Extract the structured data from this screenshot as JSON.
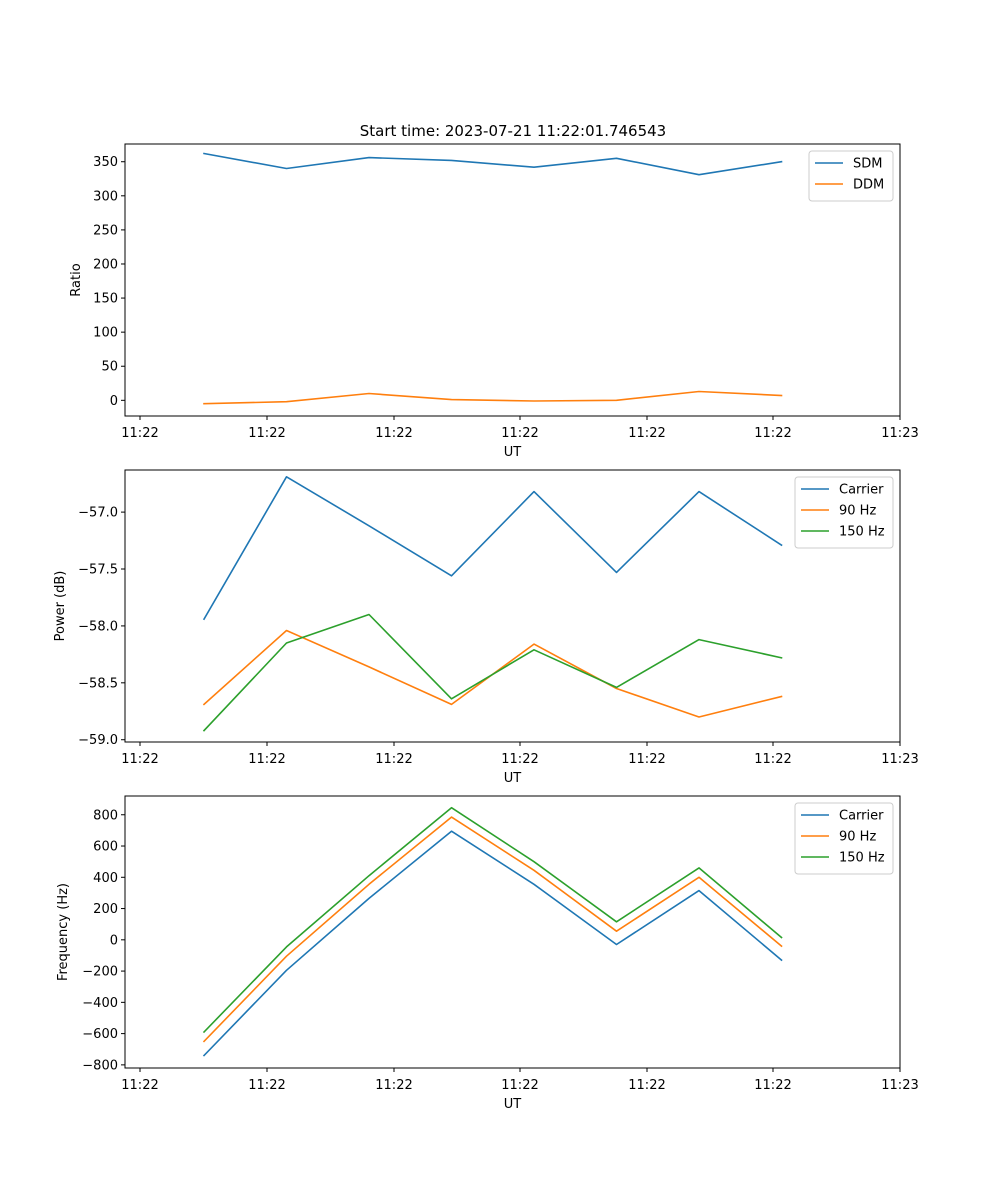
{
  "title": "Start time: 2023-07-21 11:22:01.746543",
  "colors": {
    "blue": "#1f77b4",
    "orange": "#ff7f0e",
    "green": "#2ca02c"
  },
  "chart_data": [
    {
      "type": "line",
      "xlabel": "UT",
      "ylabel": "Ratio",
      "x_tick_labels": [
        "11:22",
        "11:22",
        "11:22",
        "11:22",
        "11:22",
        "11:22",
        "11:23"
      ],
      "y_ticks": [
        0,
        50,
        100,
        150,
        200,
        250,
        300,
        350
      ],
      "ylim": [
        -23,
        376
      ],
      "x_points": 8,
      "legend_position": "top-right",
      "series": [
        {
          "name": "SDM",
          "color": "#1f77b4",
          "values": [
            362,
            340,
            356,
            352,
            342,
            355,
            331,
            350
          ]
        },
        {
          "name": "DDM",
          "color": "#ff7f0e",
          "values": [
            -5,
            -2,
            10,
            1,
            -1,
            0,
            13,
            7
          ]
        }
      ]
    },
    {
      "type": "line",
      "xlabel": "UT",
      "ylabel": "Power (dB)",
      "x_tick_labels": [
        "11:22",
        "11:22",
        "11:22",
        "11:22",
        "11:22",
        "11:22",
        "11:23"
      ],
      "y_ticks": [
        -57.0,
        -57.5,
        -58.0,
        -58.5,
        -59.0
      ],
      "y_tick_labels": [
        "−57.0",
        "−57.5",
        "−58.0",
        "−58.5",
        "−59.0"
      ],
      "ylim": [
        -59.02,
        -56.63
      ],
      "x_points": 8,
      "legend_position": "top-right",
      "series": [
        {
          "name": "Carrier",
          "color": "#1f77b4",
          "values": [
            -57.94,
            -56.69,
            -57.12,
            -57.56,
            -56.82,
            -57.53,
            -56.82,
            -57.29
          ]
        },
        {
          "name": "90 Hz",
          "color": "#ff7f0e",
          "values": [
            -58.69,
            -58.04,
            -58.36,
            -58.69,
            -58.16,
            -58.55,
            -58.8,
            -58.62
          ]
        },
        {
          "name": "150 Hz",
          "color": "#2ca02c",
          "values": [
            -58.92,
            -58.15,
            -57.9,
            -58.64,
            -58.21,
            -58.54,
            -58.12,
            -58.28
          ]
        }
      ]
    },
    {
      "type": "line",
      "xlabel": "UT",
      "ylabel": "Frequency (Hz)",
      "x_tick_labels": [
        "11:22",
        "11:22",
        "11:22",
        "11:22",
        "11:22",
        "11:22",
        "11:23"
      ],
      "y_ticks": [
        800,
        600,
        400,
        200,
        0,
        -200,
        -400,
        -600,
        -800
      ],
      "y_tick_labels": [
        "800",
        "600",
        "400",
        "200",
        "0",
        "−200",
        "−400",
        "−600",
        "−800"
      ],
      "ylim": [
        -820,
        920
      ],
      "x_points": 8,
      "legend_position": "top-right",
      "series": [
        {
          "name": "Carrier",
          "color": "#1f77b4",
          "values": [
            -740,
            -195,
            265,
            695,
            355,
            -30,
            315,
            -130
          ]
        },
        {
          "name": "90 Hz",
          "color": "#ff7f0e",
          "values": [
            -650,
            -105,
            355,
            785,
            445,
            55,
            400,
            -40
          ]
        },
        {
          "name": "150 Hz",
          "color": "#2ca02c",
          "values": [
            -590,
            -45,
            410,
            845,
            500,
            115,
            460,
            15
          ]
        }
      ]
    }
  ]
}
